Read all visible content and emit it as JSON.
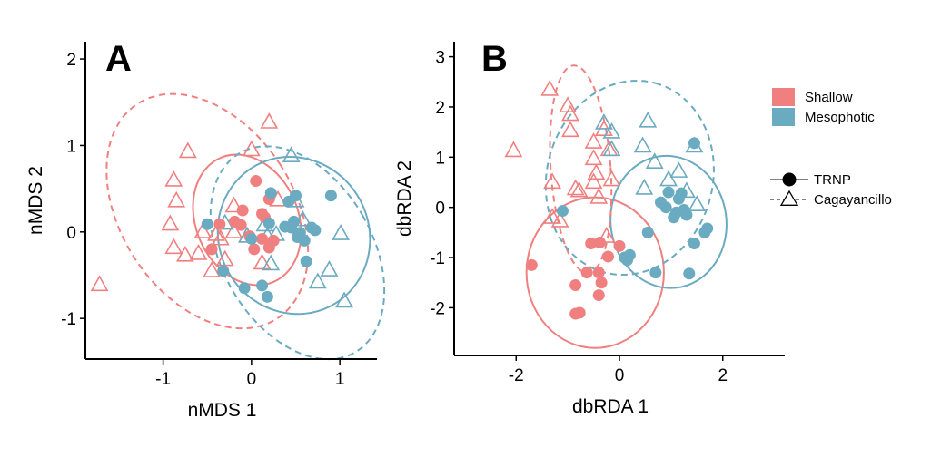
{
  "colors": {
    "shallow": "#F08080",
    "mesophotic": "#6AABC1",
    "axis": "#000000"
  },
  "legend": {
    "items": [
      {
        "label": "Shallow",
        "color": "#F08080"
      },
      {
        "label": "Mesophotic",
        "color": "#6AABC1"
      }
    ],
    "shapes": [
      {
        "label": "TRNP",
        "marker": "filled-circle",
        "linetype": "solid"
      },
      {
        "label": "Cagayancillo",
        "marker": "open-triangle",
        "linetype": "dashed"
      }
    ]
  },
  "chart_data": [
    {
      "type": "scatter",
      "panel_label": "A",
      "xlabel": "nMDS 1",
      "ylabel": "nMDS 2",
      "xlim": [
        -1.88,
        1.42
      ],
      "ylim": [
        -1.47,
        2.2
      ],
      "xticks": [
        -1,
        0,
        1
      ],
      "yticks": [
        -1,
        0,
        1,
        2
      ],
      "groups": [
        {
          "habitat": "Shallow",
          "site": "TRNP",
          "marker": "filled-circle",
          "points": [
            [
              -0.45,
              -0.2
            ],
            [
              -0.36,
              0.09
            ],
            [
              -0.19,
              0.12
            ],
            [
              -0.1,
              0.25
            ],
            [
              -0.12,
              0.08
            ],
            [
              0.05,
              0.59
            ],
            [
              0.12,
              0.21
            ],
            [
              0.15,
              0.17
            ],
            [
              0.2,
              0.38
            ],
            [
              -0.02,
              -0.05
            ],
            [
              0.12,
              -0.08
            ],
            [
              0.03,
              -0.2
            ],
            [
              0.2,
              -0.18
            ],
            [
              0.25,
              -0.1
            ]
          ],
          "ellipse": {
            "cx": -0.05,
            "cy": 0.14,
            "rx": 0.58,
            "ry": 0.78,
            "angle_deg": 23
          }
        },
        {
          "habitat": "Mesophotic",
          "site": "TRNP",
          "marker": "filled-circle",
          "points": [
            [
              -0.5,
              0.09
            ],
            [
              -0.32,
              -0.45
            ],
            [
              -0.08,
              -0.65
            ],
            [
              0.0,
              -0.08
            ],
            [
              0.12,
              -0.62
            ],
            [
              0.18,
              -0.75
            ],
            [
              0.2,
              0.1
            ],
            [
              0.22,
              0.45
            ],
            [
              0.38,
              0.06
            ],
            [
              0.42,
              0.35
            ],
            [
              0.45,
              0.05
            ],
            [
              0.48,
              0.12
            ],
            [
              0.5,
              0.42
            ],
            [
              0.52,
              -0.06
            ],
            [
              0.55,
              -0.01
            ],
            [
              0.6,
              -0.1
            ],
            [
              0.62,
              -0.34
            ],
            [
              0.68,
              0.05
            ],
            [
              0.72,
              0.02
            ],
            [
              0.9,
              0.42
            ]
          ],
          "ellipse": {
            "cx": 0.48,
            "cy": -0.04,
            "rx": 0.85,
            "ry": 0.92,
            "angle_deg": 28
          }
        },
        {
          "habitat": "Shallow",
          "site": "Cagayancillo",
          "marker": "open-triangle",
          "points": [
            [
              -1.72,
              -0.61
            ],
            [
              -0.72,
              0.93
            ],
            [
              -0.88,
              0.6
            ],
            [
              -0.85,
              0.36
            ],
            [
              -0.92,
              0.09
            ],
            [
              -0.88,
              -0.18
            ],
            [
              -0.75,
              -0.27
            ],
            [
              -0.6,
              -0.25
            ],
            [
              -0.55,
              0.0
            ],
            [
              -0.45,
              -0.45
            ],
            [
              -0.4,
              -0.03
            ],
            [
              -0.35,
              -0.08
            ],
            [
              -0.3,
              -0.32
            ],
            [
              -0.2,
              0.0
            ],
            [
              -0.2,
              0.3
            ],
            [
              -0.05,
              -0.05
            ],
            [
              0.0,
              0.95
            ],
            [
              0.2,
              1.27
            ],
            [
              0.12,
              -0.36
            ],
            [
              0.3,
              0.37
            ]
          ],
          "ellipse": {
            "cx": -0.5,
            "cy": 0.24,
            "rx": 0.98,
            "ry": 1.48,
            "angle_deg": 33
          }
        },
        {
          "habitat": "Mesophotic",
          "site": "Cagayancillo",
          "marker": "open-triangle",
          "points": [
            [
              -0.3,
              0.1
            ],
            [
              -0.05,
              -0.05
            ],
            [
              0.15,
              0.08
            ],
            [
              0.18,
              -0.05
            ],
            [
              0.22,
              -0.37
            ],
            [
              0.28,
              -0.03
            ],
            [
              0.45,
              0.88
            ],
            [
              0.5,
              0.36
            ],
            [
              0.58,
              0.14
            ],
            [
              0.75,
              -0.58
            ],
            [
              0.88,
              -0.44
            ],
            [
              1.05,
              -0.8
            ],
            [
              1.01,
              -0.02
            ]
          ],
          "ellipse": {
            "cx": 0.52,
            "cy": -0.24,
            "rx": 0.85,
            "ry": 1.33,
            "angle_deg": 30
          }
        }
      ]
    },
    {
      "type": "scatter",
      "panel_label": "B",
      "xlabel": "dbRDA 1",
      "ylabel": "dbRDA 2",
      "xlim": [
        -3.2,
        3.2
      ],
      "ylim": [
        -2.95,
        3.3
      ],
      "xticks": [
        -2,
        0,
        2
      ],
      "yticks": [
        -2,
        -1,
        0,
        1,
        2,
        3
      ],
      "groups": [
        {
          "habitat": "Shallow",
          "site": "TRNP",
          "marker": "filled-circle",
          "points": [
            [
              -1.7,
              -1.15
            ],
            [
              -0.85,
              -2.12
            ],
            [
              -0.77,
              -2.1
            ],
            [
              -0.85,
              -1.55
            ],
            [
              -0.55,
              -0.72
            ],
            [
              -0.63,
              -1.3
            ],
            [
              -0.4,
              -1.3
            ],
            [
              -0.35,
              -1.5
            ],
            [
              -0.4,
              -1.75
            ],
            [
              -0.22,
              -0.98
            ],
            [
              -0.0,
              -0.77
            ],
            [
              -0.38,
              -0.7
            ]
          ],
          "ellipse": {
            "cx": -0.47,
            "cy": -1.3,
            "rx": 1.33,
            "ry": 1.5,
            "angle_deg": 0
          }
        },
        {
          "habitat": "Mesophotic",
          "site": "TRNP",
          "marker": "filled-circle",
          "points": [
            [
              -1.1,
              -0.07
            ],
            [
              0.1,
              -1.0
            ],
            [
              0.15,
              -1.05
            ],
            [
              0.2,
              -0.95
            ],
            [
              0.55,
              -0.5
            ],
            [
              0.7,
              -1.3
            ],
            [
              0.8,
              0.1
            ],
            [
              0.9,
              0.0
            ],
            [
              0.95,
              0.3
            ],
            [
              1.05,
              -0.2
            ],
            [
              1.1,
              -0.1
            ],
            [
              1.15,
              0.17
            ],
            [
              1.2,
              0.28
            ],
            [
              1.25,
              -0.05
            ],
            [
              1.3,
              -0.15
            ],
            [
              1.35,
              -1.32
            ],
            [
              1.45,
              -0.72
            ],
            [
              1.45,
              1.28
            ],
            [
              1.65,
              -0.5
            ],
            [
              1.7,
              -0.42
            ]
          ],
          "ellipse": {
            "cx": 0.95,
            "cy": -0.29,
            "rx": 1.12,
            "ry": 1.32,
            "angle_deg": 8
          }
        },
        {
          "habitat": "Shallow",
          "site": "Cagayancillo",
          "marker": "open-triangle",
          "points": [
            [
              -2.05,
              1.13
            ],
            [
              -1.35,
              2.35
            ],
            [
              -1.0,
              2.02
            ],
            [
              -1.3,
              0.5
            ],
            [
              -0.95,
              1.85
            ],
            [
              -0.95,
              1.53
            ],
            [
              -0.85,
              0.37
            ],
            [
              -0.78,
              0.33
            ],
            [
              -0.5,
              1.3
            ],
            [
              -0.5,
              0.97
            ],
            [
              -0.4,
              0.2
            ],
            [
              -0.45,
              0.68
            ],
            [
              -0.5,
              0.5
            ],
            [
              -0.3,
              1.55
            ],
            [
              -0.2,
              1.15
            ],
            [
              -1.15,
              -0.27
            ],
            [
              -1.3,
              -0.2
            ],
            [
              -0.25,
              -0.58
            ],
            [
              -0.15,
              0.55
            ]
          ],
          "ellipse": {
            "cx": -0.75,
            "cy": 0.76,
            "rx": 0.58,
            "ry": 2.07,
            "angle_deg": 4
          }
        },
        {
          "habitat": "Mesophotic",
          "site": "Cagayancillo",
          "marker": "open-triangle",
          "points": [
            [
              -0.3,
              1.68
            ],
            [
              -0.15,
              1.5
            ],
            [
              -0.15,
              1.15
            ],
            [
              0.45,
              1.22
            ],
            [
              0.55,
              1.72
            ],
            [
              0.68,
              0.9
            ],
            [
              0.48,
              0.38
            ],
            [
              0.95,
              0.55
            ],
            [
              1.15,
              0.72
            ],
            [
              1.3,
              0.32
            ],
            [
              1.45,
              1.22
            ],
            [
              1.5,
              0.05
            ]
          ],
          "ellipse": {
            "cx": 0.2,
            "cy": 0.59,
            "rx": 1.9,
            "ry": 1.65,
            "angle_deg": 75
          }
        }
      ]
    }
  ]
}
